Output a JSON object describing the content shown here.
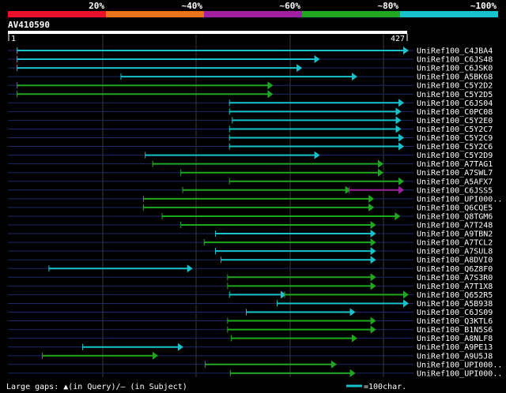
{
  "chart_data": {
    "type": "alignment-hits",
    "query": "AV410590",
    "query_range": [
      1,
      427
    ],
    "scale_start_label": "1",
    "scale_end_label": "427",
    "identity_legend": [
      {
        "label": "20%",
        "color": "#e8102a"
      },
      {
        "label": "~40%",
        "color": "#e8731a"
      },
      {
        "label": "~60%",
        "color": "#a020a0"
      },
      {
        "label": "~80%",
        "color": "#1fa81f"
      },
      {
        "label": "~100%",
        "color": "#17c2cc"
      }
    ],
    "hits": [
      {
        "name": "UniRef100_C4JBA4",
        "segments": [
          {
            "start": 10,
            "end": 427,
            "color": "#17c2cc"
          }
        ]
      },
      {
        "name": "UniRef100_C6JS48",
        "segments": [
          {
            "start": 10,
            "end": 332,
            "color": "#17c2cc"
          }
        ]
      },
      {
        "name": "UniRef100_C6JSK0",
        "segments": [
          {
            "start": 10,
            "end": 313,
            "color": "#17c2cc"
          }
        ]
      },
      {
        "name": "UniRef100_A5BK68",
        "segments": [
          {
            "start": 121,
            "end": 372,
            "color": "#17c2cc"
          }
        ]
      },
      {
        "name": "UniRef100_C5Y2D2",
        "segments": [
          {
            "start": 10,
            "end": 282,
            "color": "#1fa81f"
          }
        ]
      },
      {
        "name": "UniRef100_C5Y2D5",
        "segments": [
          {
            "start": 10,
            "end": 282,
            "color": "#1fa81f"
          }
        ]
      },
      {
        "name": "UniRef100_C6JS04",
        "segments": [
          {
            "start": 237,
            "end": 422,
            "color": "#17c2cc"
          }
        ]
      },
      {
        "name": "UniRef100_C0PC08",
        "segments": [
          {
            "start": 237,
            "end": 419,
            "color": "#17c2cc"
          }
        ]
      },
      {
        "name": "UniRef100_C5Y2E0",
        "segments": [
          {
            "start": 240,
            "end": 419,
            "color": "#17c2cc"
          }
        ]
      },
      {
        "name": "UniRef100_C5Y2C7",
        "segments": [
          {
            "start": 237,
            "end": 419,
            "color": "#17c2cc"
          }
        ]
      },
      {
        "name": "UniRef100_C5Y2C9",
        "segments": [
          {
            "start": 237,
            "end": 422,
            "color": "#17c2cc"
          }
        ]
      },
      {
        "name": "UniRef100_C5Y2C6",
        "segments": [
          {
            "start": 237,
            "end": 422,
            "color": "#17c2cc"
          }
        ]
      },
      {
        "name": "UniRef100_C5Y2D9",
        "segments": [
          {
            "start": 147,
            "end": 332,
            "color": "#17c2cc"
          }
        ]
      },
      {
        "name": "UniRef100_A7TAG1",
        "segments": [
          {
            "start": 155,
            "end": 400,
            "color": "#1fa81f"
          }
        ]
      },
      {
        "name": "UniRef100_A7SWL7",
        "segments": [
          {
            "start": 185,
            "end": 400,
            "color": "#1fa81f"
          }
        ]
      },
      {
        "name": "UniRef100_A5AFX7",
        "segments": [
          {
            "start": 237,
            "end": 422,
            "color": "#1fa81f"
          }
        ]
      },
      {
        "name": "UniRef100_C6JSS5",
        "segments": [
          {
            "start": 187,
            "end": 365,
            "color": "#1fa81f"
          },
          {
            "start": 365,
            "end": 422,
            "color": "#a020a0"
          }
        ]
      },
      {
        "name": "UniRef100_UPI000..",
        "segments": [
          {
            "start": 145,
            "end": 390,
            "color": "#1fa81f"
          }
        ]
      },
      {
        "name": "UniRef100_Q6CQE5",
        "segments": [
          {
            "start": 145,
            "end": 390,
            "color": "#1fa81f"
          }
        ]
      },
      {
        "name": "UniRef100_Q8TGM6",
        "segments": [
          {
            "start": 165,
            "end": 418,
            "color": "#1fa81f"
          }
        ]
      },
      {
        "name": "UniRef100_A7T248",
        "segments": [
          {
            "start": 185,
            "end": 392,
            "color": "#1fa81f"
          }
        ]
      },
      {
        "name": "UniRef100_A9TBN2",
        "segments": [
          {
            "start": 222,
            "end": 392,
            "color": "#17c2cc"
          }
        ]
      },
      {
        "name": "UniRef100_A7TCL2",
        "segments": [
          {
            "start": 210,
            "end": 392,
            "color": "#1fa81f"
          }
        ]
      },
      {
        "name": "UniRef100_A7SUL8",
        "segments": [
          {
            "start": 222,
            "end": 392,
            "color": "#17c2cc"
          }
        ]
      },
      {
        "name": "UniRef100_A8DVI0",
        "segments": [
          {
            "start": 228,
            "end": 392,
            "color": "#17c2cc"
          }
        ]
      },
      {
        "name": "UniRef100_Q6Z8F0",
        "segments": [
          {
            "start": 44,
            "end": 196,
            "color": "#17c2cc"
          }
        ]
      },
      {
        "name": "UniRef100_A7S3R0",
        "segments": [
          {
            "start": 235,
            "end": 392,
            "color": "#1fa81f"
          }
        ]
      },
      {
        "name": "UniRef100_A7T1X8",
        "segments": [
          {
            "start": 235,
            "end": 392,
            "color": "#1fa81f"
          }
        ]
      },
      {
        "name": "UniRef100_Q652R5",
        "segments": [
          {
            "start": 237,
            "end": 296,
            "color": "#17c2cc"
          },
          {
            "start": 296,
            "end": 427,
            "color": "#1fa81f"
          }
        ]
      },
      {
        "name": "UniRef100_A5B938",
        "segments": [
          {
            "start": 288,
            "end": 427,
            "color": "#17c2cc"
          }
        ]
      },
      {
        "name": "UniRef100_C6JS09",
        "segments": [
          {
            "start": 255,
            "end": 370,
            "color": "#17c2cc"
          }
        ]
      },
      {
        "name": "UniRef100_Q3KTL6",
        "segments": [
          {
            "start": 235,
            "end": 392,
            "color": "#1fa81f"
          }
        ]
      },
      {
        "name": "UniRef100_B1N5S6",
        "segments": [
          {
            "start": 235,
            "end": 392,
            "color": "#1fa81f"
          }
        ]
      },
      {
        "name": "UniRef100_A8NLF8",
        "segments": [
          {
            "start": 239,
            "end": 372,
            "color": "#1fa81f"
          }
        ]
      },
      {
        "name": "UniRef100_A9PE13",
        "segments": [
          {
            "start": 80,
            "end": 186,
            "color": "#17c2cc"
          }
        ]
      },
      {
        "name": "UniRef100_A9U5J8",
        "segments": [
          {
            "start": 37,
            "end": 159,
            "color": "#1fa81f"
          }
        ]
      },
      {
        "name": "UniRef100_UPI000..",
        "segments": [
          {
            "start": 211,
            "end": 350,
            "color": "#1fa81f"
          }
        ]
      },
      {
        "name": "UniRef100_UPI000..",
        "segments": [
          {
            "start": 238,
            "end": 370,
            "color": "#1fa81f"
          }
        ]
      }
    ]
  },
  "footer": {
    "gaps_text": "Large gaps: ▲(in Query)/— (in Subject)",
    "scale_text": "=100char.",
    "scale_color": "#17c2cc"
  }
}
